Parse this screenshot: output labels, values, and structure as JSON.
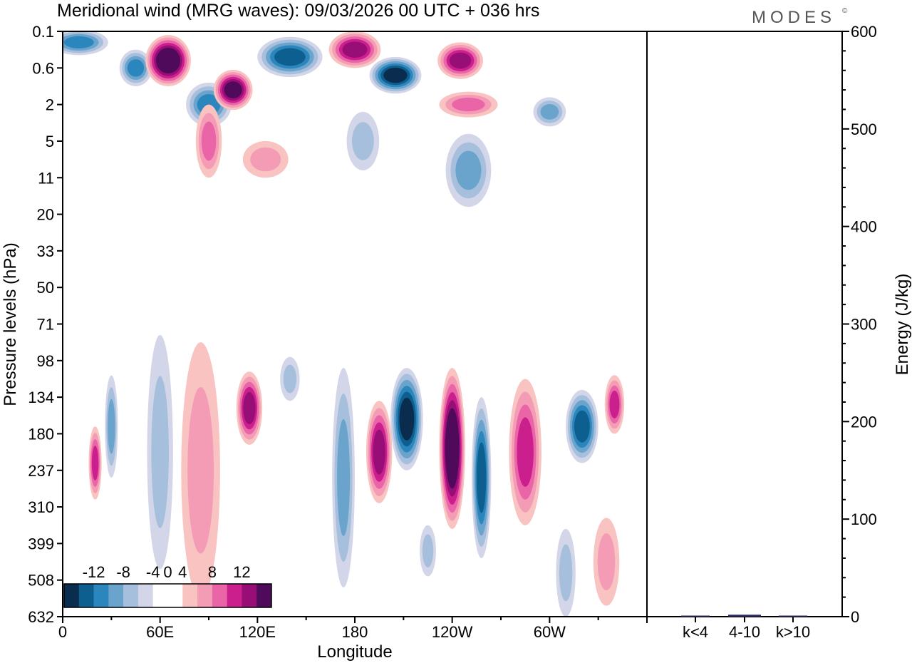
{
  "chart_data": {
    "type": "heatmap",
    "title": "Meridional wind (MRG waves):  09/03/2026  00 UTC  + 036 hrs",
    "brand": "MODES",
    "brand_mark": "©",
    "xlabel": "Longitude",
    "ylabel": "Pressure levels (hPa)",
    "x_ticks": [
      {
        "lon": 0,
        "label": "0"
      },
      {
        "lon": 60,
        "label": "60E"
      },
      {
        "lon": 120,
        "label": "120E"
      },
      {
        "lon": 180,
        "label": "180"
      },
      {
        "lon": 240,
        "label": "120W"
      },
      {
        "lon": 300,
        "label": "60W"
      }
    ],
    "xlim": [
      0,
      360
    ],
    "pressure_levels": [
      "0.1",
      "0.6",
      "2",
      "5",
      "11",
      "20",
      "33",
      "50",
      "71",
      "98",
      "134",
      "180",
      "237",
      "310",
      "399",
      "508",
      "632"
    ],
    "colorbar": {
      "labels": [
        "-12",
        "-8",
        "-4",
        "0",
        "4",
        "8",
        "12"
      ],
      "colors": [
        "#0a2c4e",
        "#0c5f8f",
        "#2c86be",
        "#6aa4cd",
        "#a6bfdc",
        "#d3d6e8",
        "#ffffff",
        "#ffffff",
        "#f8c3c1",
        "#f49bb6",
        "#ea65a8",
        "#cc1f8e",
        "#980e77",
        "#4f0a5c"
      ]
    },
    "cells": [
      {
        "lon": 10,
        "lev": 0.3,
        "rx": 18,
        "ry": 0.35,
        "v": -8
      },
      {
        "lon": 45,
        "lev": 1.0,
        "rx": 10,
        "ry": 0.5,
        "v": -8
      },
      {
        "lon": 65,
        "lev": 0.8,
        "rx": 14,
        "ry": 0.7,
        "v": 13
      },
      {
        "lon": 90,
        "lev": 2.0,
        "rx": 14,
        "ry": 0.6,
        "v": -8
      },
      {
        "lon": 105,
        "lev": 1.6,
        "rx": 12,
        "ry": 0.55,
        "v": 12
      },
      {
        "lon": 140,
        "lev": 0.7,
        "rx": 20,
        "ry": 0.55,
        "v": -10
      },
      {
        "lon": 180,
        "lev": 0.5,
        "rx": 16,
        "ry": 0.5,
        "v": 10
      },
      {
        "lon": 205,
        "lev": 1.2,
        "rx": 16,
        "ry": 0.5,
        "v": -12
      },
      {
        "lon": 245,
        "lev": 0.8,
        "rx": 14,
        "ry": 0.5,
        "v": 9
      },
      {
        "lon": 300,
        "lev": 2.2,
        "rx": 10,
        "ry": 0.4,
        "v": -6
      },
      {
        "lon": 250,
        "lev": 2.0,
        "rx": 18,
        "ry": 0.35,
        "v": 6
      },
      {
        "lon": 90,
        "lev": 3.0,
        "rx": 8,
        "ry": 1.0,
        "v": 5
      },
      {
        "lon": 185,
        "lev": 3.0,
        "rx": 10,
        "ry": 0.8,
        "v": -4
      },
      {
        "lon": 250,
        "lev": 3.8,
        "rx": 14,
        "ry": 1.0,
        "v": -5
      },
      {
        "lon": 125,
        "lev": 3.5,
        "rx": 14,
        "ry": 0.5,
        "v": 3
      },
      {
        "lon": 30,
        "lev": 10.8,
        "rx": 4,
        "ry": 1.4,
        "v": -6
      },
      {
        "lon": 20,
        "lev": 11.8,
        "rx": 4,
        "ry": 1.0,
        "v": 7
      },
      {
        "lon": 60,
        "lev": 11.5,
        "rx": 8,
        "ry": 3.2,
        "v": -4
      },
      {
        "lon": 85,
        "lev": 12.0,
        "rx": 12,
        "ry": 3.5,
        "v": 3
      },
      {
        "lon": 115,
        "lev": 10.3,
        "rx": 8,
        "ry": 1.0,
        "v": 10
      },
      {
        "lon": 140,
        "lev": 9.5,
        "rx": 6,
        "ry": 0.6,
        "v": -4
      },
      {
        "lon": 173,
        "lev": 12.2,
        "rx": 7,
        "ry": 3.0,
        "v": -6
      },
      {
        "lon": 195,
        "lev": 11.5,
        "rx": 8,
        "ry": 1.4,
        "v": 9
      },
      {
        "lon": 212,
        "lev": 10.6,
        "rx": 10,
        "ry": 1.4,
        "v": -11
      },
      {
        "lon": 240,
        "lev": 11.4,
        "rx": 8,
        "ry": 2.2,
        "v": 13
      },
      {
        "lon": 258,
        "lev": 12.2,
        "rx": 6,
        "ry": 2.2,
        "v": -10
      },
      {
        "lon": 285,
        "lev": 11.5,
        "rx": 10,
        "ry": 2.0,
        "v": 8
      },
      {
        "lon": 320,
        "lev": 10.8,
        "rx": 10,
        "ry": 1.0,
        "v": -10
      },
      {
        "lon": 340,
        "lev": 10.2,
        "rx": 6,
        "ry": 0.8,
        "v": 7
      },
      {
        "lon": 310,
        "lev": 14.8,
        "rx": 6,
        "ry": 1.2,
        "v": -4
      },
      {
        "lon": 335,
        "lev": 14.5,
        "rx": 8,
        "ry": 1.2,
        "v": 3
      },
      {
        "lon": 225,
        "lev": 14.2,
        "rx": 5,
        "ry": 0.7,
        "v": -3
      }
    ],
    "energy_panel": {
      "ylabel": "Energy (J/kg)",
      "ylim": [
        0,
        600
      ],
      "y_ticks": [
        0,
        100,
        200,
        300,
        400,
        500,
        600
      ],
      "categories": [
        "k<4",
        "4-10",
        "k>10"
      ],
      "values": [
        0.5,
        2,
        0.5
      ],
      "bar_color": "#2a2a6a"
    }
  }
}
